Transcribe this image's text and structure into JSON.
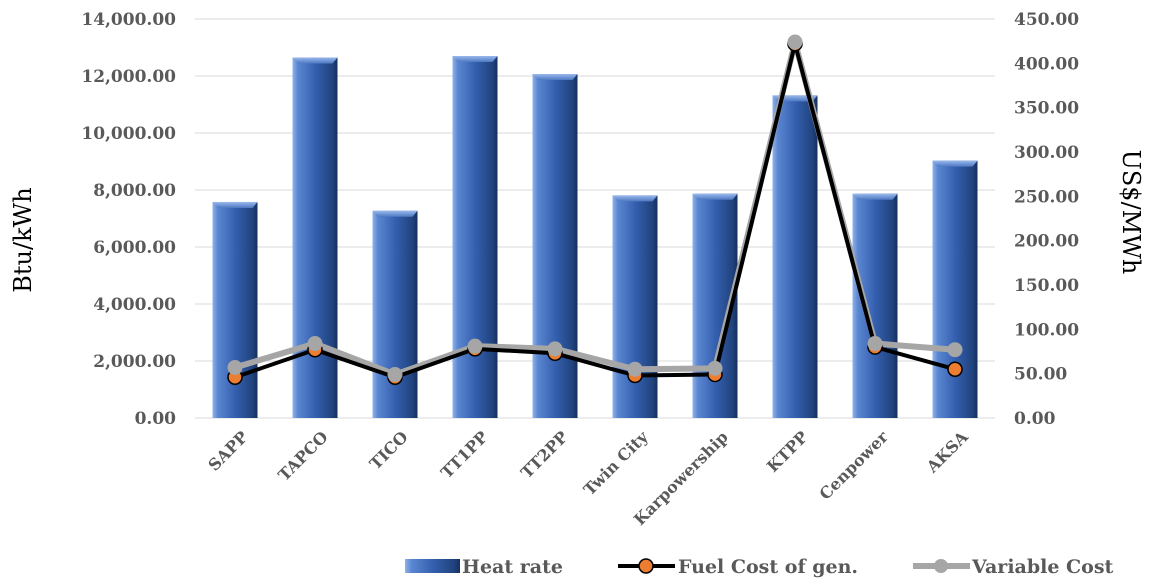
{
  "chart_data": {
    "type": "bar",
    "categories": [
      "SAPP",
      "TAPCO",
      "TICO",
      "TT1PP",
      "TT2PP",
      "Twin City",
      "Karpowership",
      "KTPP",
      "Cenpower",
      "AKSA"
    ],
    "series": [
      {
        "name": "Heat rate",
        "type": "bar",
        "axis": "left",
        "values": [
          7580,
          12650,
          7270,
          12700,
          12070,
          7810,
          7870,
          11320,
          7870,
          9030
        ]
      },
      {
        "name": "Fuel Cost of gen.",
        "type": "line",
        "axis": "right",
        "values": [
          46,
          77,
          46,
          78,
          73,
          48,
          49,
          422,
          80,
          55
        ]
      },
      {
        "name": "Variable Cost",
        "type": "line",
        "axis": "right",
        "values": [
          57,
          84,
          49,
          81,
          78,
          55,
          56,
          424,
          84,
          77
        ]
      }
    ],
    "ylabel": "Btu/kWh",
    "y2label": "US$/MWh",
    "ylim": [
      0,
      14000
    ],
    "y2lim": [
      0,
      450
    ],
    "yticks": [
      "0.00",
      "2,000.00",
      "4,000.00",
      "6,000.00",
      "8,000.00",
      "10,000.00",
      "12,000.00",
      "14,000.00"
    ],
    "y2ticks": [
      "0.00",
      "50.00",
      "100.00",
      "150.00",
      "200.00",
      "250.00",
      "300.00",
      "350.00",
      "400.00",
      "450.00"
    ],
    "grid": true,
    "legend_position": "bottom-right",
    "colors": {
      "bar": "#3a62b0",
      "fuel_line": "#000000",
      "fuel_marker": "#ed7d31",
      "variable_line": "#a6a6a6",
      "gridline": "#d9d9d9"
    }
  }
}
